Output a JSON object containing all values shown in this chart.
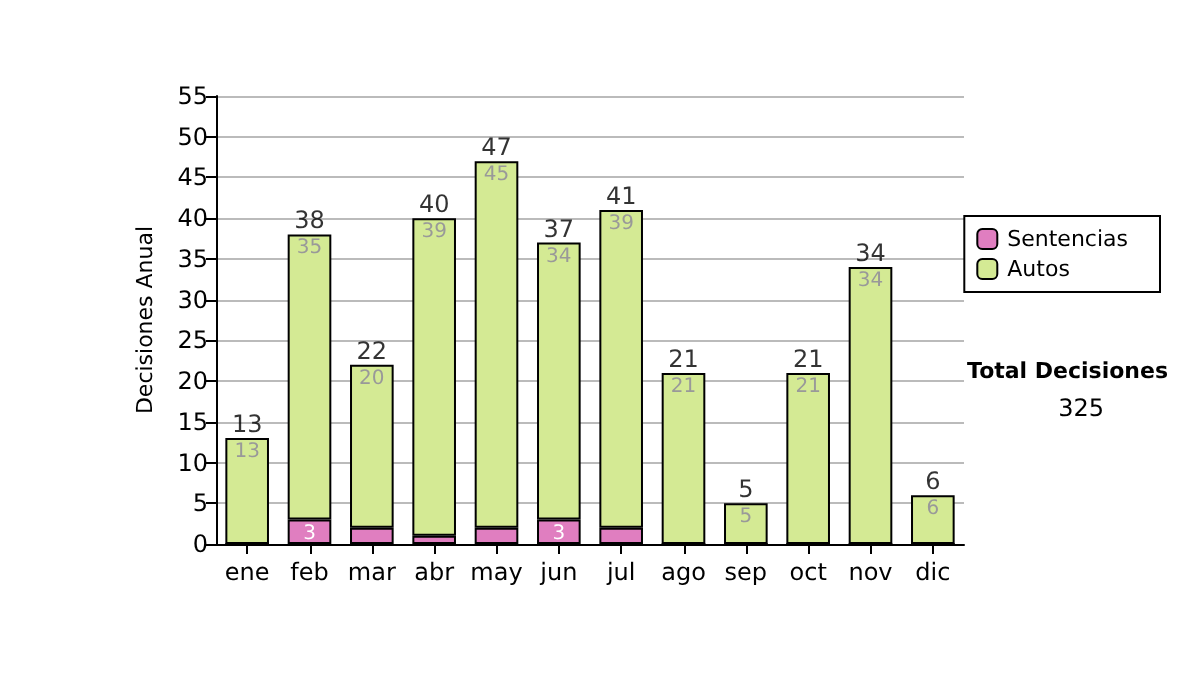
{
  "chart_data": {
    "type": "bar",
    "stacked": true,
    "ylabel": "Decisiones Anual",
    "categories": [
      "ene",
      "feb",
      "mar",
      "abr",
      "may",
      "jun",
      "jul",
      "ago",
      "sep",
      "oct",
      "nov",
      "dic"
    ],
    "series": [
      {
        "name": "Sentencias",
        "color": "#e07ec0",
        "values": [
          0,
          3,
          2,
          1,
          2,
          3,
          2,
          0,
          0,
          0,
          0,
          0
        ],
        "value_labels": [
          null,
          "3",
          null,
          null,
          null,
          "3",
          null,
          null,
          null,
          null,
          null,
          null
        ]
      },
      {
        "name": "Autos",
        "color": "#d4ea94",
        "values": [
          13,
          35,
          20,
          39,
          45,
          34,
          39,
          21,
          5,
          21,
          34,
          6
        ],
        "value_labels": [
          "13",
          "35",
          "20",
          "39",
          "45",
          "34",
          "39",
          "21",
          "5",
          "21",
          "34",
          "6"
        ]
      }
    ],
    "totals": [
      "13",
      "38",
      "22",
      "40",
      "47",
      "37",
      "41",
      "21",
      "5",
      "21",
      "34",
      "6"
    ],
    "ylim": [
      0,
      55
    ],
    "yticks": [
      0,
      5,
      10,
      15,
      20,
      25,
      30,
      35,
      40,
      45,
      50,
      55
    ],
    "grid": "y",
    "legend": "right",
    "annotations": [
      "Total Decisiones",
      "325"
    ]
  }
}
